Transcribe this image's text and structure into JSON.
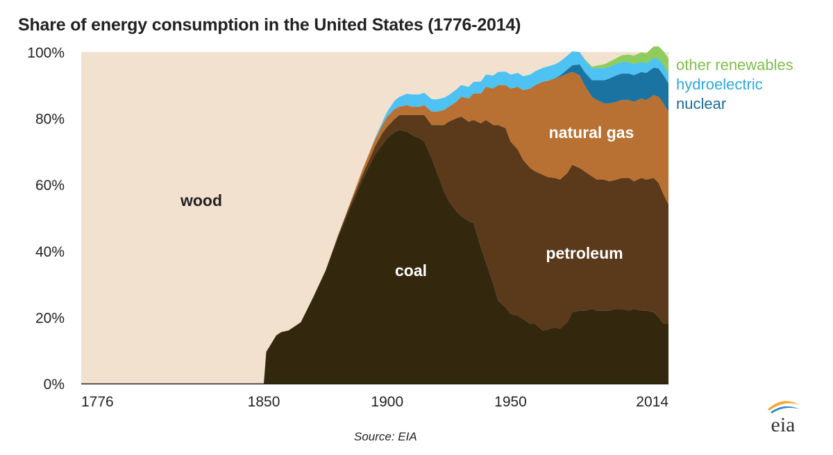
{
  "chart_data": {
    "type": "area",
    "stacked": true,
    "percent": true,
    "title": "Share of energy consumption  in the United States (1776-2014)",
    "source": "Source: EIA",
    "xlabel": "",
    "ylabel": "",
    "xlim": [
      1776,
      2014
    ],
    "ylim": [
      0,
      100
    ],
    "x_ticks": [
      {
        "value": 1776,
        "label": "1776"
      },
      {
        "value": 1850,
        "label": "1850"
      },
      {
        "value": 1900,
        "label": "1900"
      },
      {
        "value": 1950,
        "label": "1950"
      },
      {
        "value": 2014,
        "label": "2014"
      }
    ],
    "y_ticks": [
      {
        "value": 0,
        "label": "0%"
      },
      {
        "value": 20,
        "label": "20%"
      },
      {
        "value": 40,
        "label": "40%"
      },
      {
        "value": 60,
        "label": "60%"
      },
      {
        "value": 80,
        "label": "80%"
      },
      {
        "value": 100,
        "label": "100%"
      }
    ],
    "x": [
      1776,
      1848,
      1849,
      1850,
      1851,
      1853,
      1855,
      1857,
      1860,
      1865,
      1870,
      1875,
      1880,
      1885,
      1890,
      1893,
      1895,
      1898,
      1900,
      1903,
      1905,
      1908,
      1910,
      1913,
      1915,
      1918,
      1920,
      1923,
      1925,
      1928,
      1930,
      1933,
      1935,
      1938,
      1940,
      1943,
      1945,
      1948,
      1950,
      1953,
      1955,
      1958,
      1960,
      1963,
      1965,
      1968,
      1970,
      1973,
      1975,
      1978,
      1980,
      1983,
      1985,
      1988,
      1990,
      1993,
      1995,
      1998,
      2000,
      2003,
      2005,
      2008,
      2010,
      2012,
      2014
    ],
    "series": [
      {
        "name": "coal",
        "label": "coal",
        "color": "#33280e",
        "values": [
          0,
          0,
          0,
          0,
          9.6,
          12,
          14.5,
          15.5,
          16,
          18.5,
          26,
          34,
          44,
          53,
          61.5,
          66,
          69,
          72,
          74,
          75.8,
          76.5,
          76,
          75,
          74,
          73,
          68,
          64,
          58,
          55,
          52,
          50.5,
          49,
          48.5,
          41,
          36.5,
          30,
          25,
          23,
          21,
          20.5,
          19.5,
          18,
          18,
          16,
          16.3,
          17,
          16.5,
          18.5,
          21.5,
          22,
          22,
          22.5,
          22,
          22,
          22,
          22.5,
          22.5,
          22,
          22.5,
          22,
          22,
          21.5,
          20,
          18,
          18
        ]
      },
      {
        "name": "petroleum",
        "label": "petroleum",
        "color": "#5b3a1c",
        "values": [
          0,
          0,
          0,
          0,
          0,
          0,
          0,
          0,
          0,
          0,
          0,
          0,
          0.5,
          1,
          1.5,
          2,
          2.5,
          3.5,
          3.5,
          4,
          4.5,
          5,
          6,
          7,
          8,
          10,
          14,
          20,
          24,
          28,
          30,
          30,
          31,
          37.5,
          43,
          48,
          53,
          54,
          52,
          50,
          48,
          47,
          46,
          47,
          46,
          45,
          45,
          45,
          44.5,
          43,
          42,
          40,
          39.5,
          39.5,
          39,
          39,
          39.5,
          40,
          38.5,
          40,
          39.5,
          40.5,
          40.5,
          39,
          36
        ]
      },
      {
        "name": "natural_gas",
        "label": "natural gas",
        "color": "#b87132",
        "values": [
          0,
          0,
          0,
          0,
          0,
          0,
          0,
          0,
          0,
          0,
          0,
          0,
          0,
          0.5,
          1.5,
          2,
          2,
          2.5,
          3,
          3,
          2.5,
          3,
          2.5,
          2.5,
          3,
          4,
          4,
          4.5,
          4.5,
          5,
          6,
          7,
          8,
          9,
          10,
          11,
          12,
          13,
          16,
          19,
          21,
          24,
          26,
          28,
          29,
          30,
          31,
          30,
          28,
          28,
          26,
          24,
          24,
          23,
          23.5,
          23.5,
          23.5,
          23.5,
          24,
          24,
          24,
          25,
          26,
          27.5,
          28
        ]
      },
      {
        "name": "nuclear",
        "label": "nuclear",
        "color": "#1a73a1",
        "values": [
          0,
          0,
          0,
          0,
          0,
          0,
          0,
          0,
          0,
          0,
          0,
          0,
          0,
          0,
          0,
          0,
          0,
          0,
          0,
          0,
          0,
          0,
          0,
          0,
          0,
          0,
          0,
          0,
          0,
          0,
          0,
          0,
          0,
          0,
          0,
          0,
          0,
          0,
          0,
          0,
          0,
          0,
          0,
          0,
          0,
          0.1,
          0.4,
          1.2,
          2,
          3.3,
          4,
          5,
          6,
          7,
          7.5,
          8,
          8,
          8,
          8,
          8,
          8.2,
          8.3,
          8.5,
          8.5,
          8.5
        ]
      },
      {
        "name": "hydroelectric",
        "label": "hydroelectric",
        "color": "#4ec2f2",
        "values": [
          0,
          0,
          0,
          0,
          0,
          0,
          0,
          0,
          0,
          0,
          0,
          0,
          0,
          0,
          0,
          0,
          0.4,
          0.8,
          1.5,
          2.5,
          3,
          3.4,
          3.7,
          3.7,
          3.7,
          3.8,
          3.7,
          3.7,
          3.5,
          3.7,
          3.5,
          3.5,
          3.5,
          3.6,
          3.7,
          3.9,
          4,
          4.1,
          4.2,
          4.2,
          4.2,
          4.2,
          4.2,
          4.2,
          4.3,
          4.2,
          4.2,
          4.2,
          4.2,
          3.7,
          3.7,
          3.6,
          3.6,
          3.6,
          3.5,
          3.5,
          3.5,
          3.4,
          3.3,
          3,
          2.9,
          2.9,
          2.9,
          3,
          3
        ]
      },
      {
        "name": "other_renewables",
        "label": "other renewables",
        "color": "#8fcc5e",
        "values": [
          0,
          0,
          0,
          0,
          0,
          0,
          0,
          0,
          0,
          0,
          0,
          0,
          0,
          0,
          0,
          0,
          0,
          0,
          0,
          0,
          0,
          0,
          0,
          0,
          0,
          0,
          0,
          0,
          0,
          0,
          0,
          0,
          0,
          0,
          0,
          0,
          0,
          0,
          0,
          0,
          0,
          0,
          0,
          0,
          0,
          0,
          0,
          0,
          0,
          0,
          0.2,
          0.5,
          0.8,
          1.2,
          1.5,
          1.7,
          2,
          2.3,
          2.6,
          2.9,
          3,
          3.5,
          3.8,
          4.2,
          4.5
        ]
      },
      {
        "name": "wood",
        "label": "wood",
        "color": "#f3e1cf",
        "values": [
          100,
          100,
          100,
          100,
          90.4,
          88,
          85.5,
          84.5,
          84,
          81.5,
          74,
          66,
          55.5,
          45.5,
          35.5,
          30,
          26.1,
          21.2,
          18,
          14.7,
          13.5,
          12.6,
          12.8,
          12.8,
          12.3,
          14.2,
          14.3,
          13.8,
          12.5,
          11.3,
          10,
          10.5,
          9,
          8.9,
          6.8,
          7.1,
          6,
          5.9,
          6.8,
          6.3,
          7.3,
          6.8,
          5.8,
          4.8,
          4.4,
          3.7,
          2.7,
          1.1,
          -0.1,
          0,
          2.1,
          4.4,
          4.1,
          3.7,
          3,
          2.3,
          1.5,
          0.8,
          1.1,
          0.1,
          0.4,
          -1.6,
          -1.7,
          -1.2,
          2
        ]
      }
    ],
    "labels_on_chart": [
      "wood",
      "coal",
      "petroleum",
      "natural gas"
    ],
    "legend": [
      "other renewables",
      "hydroelectric",
      "nuclear"
    ]
  }
}
